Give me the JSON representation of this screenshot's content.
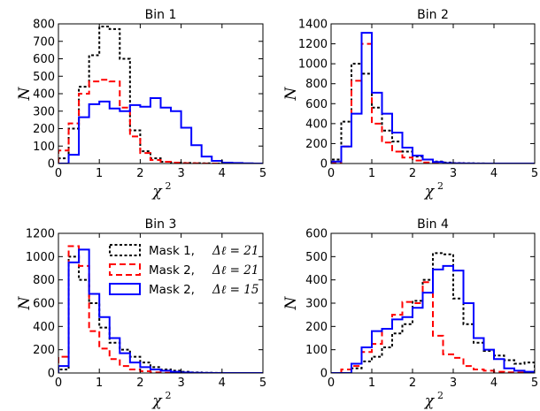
{
  "colors": {
    "mask1": "#000000",
    "mask2_21": "#ff0000",
    "mask2_15": "#0000ff"
  },
  "legend": [
    {
      "series": 0,
      "text": "Mask 1, ",
      "math": "Δℓ = 21"
    },
    {
      "series": 1,
      "text": "Mask 2, ",
      "math": "Δℓ = 21"
    },
    {
      "series": 2,
      "text": "Mask 2, ",
      "math": "Δℓ = 15"
    }
  ],
  "chart_data": [
    {
      "type": "histogram",
      "title": "Bin 1",
      "xlabel": "χ",
      "xlabel_sup": "2",
      "ylabel": "N",
      "xlim": [
        0,
        5
      ],
      "ylim": [
        0,
        800
      ],
      "xticks": [
        0,
        1,
        2,
        3,
        4,
        5
      ],
      "yticks": [
        0,
        100,
        200,
        300,
        400,
        500,
        600,
        700,
        800
      ],
      "bin_edges": [
        0,
        0.25,
        0.5,
        0.75,
        1,
        1.25,
        1.5,
        1.75,
        2,
        2.25,
        2.5,
        2.75,
        3,
        3.25,
        3.5,
        3.75,
        4,
        4.25,
        4.5,
        4.75,
        5
      ],
      "series": [
        {
          "style": "dotted",
          "counts": [
            30,
            200,
            440,
            620,
            785,
            770,
            600,
            190,
            70,
            30,
            10,
            5,
            3,
            2,
            1,
            0,
            0,
            0,
            0,
            0
          ]
        },
        {
          "style": "dashed",
          "counts": [
            75,
            230,
            400,
            470,
            480,
            470,
            320,
            155,
            60,
            20,
            10,
            5,
            2,
            1,
            0,
            0,
            0,
            0,
            0,
            0
          ]
        },
        {
          "style": "solid",
          "counts": [
            0,
            50,
            265,
            340,
            355,
            315,
            300,
            335,
            325,
            375,
            320,
            300,
            205,
            105,
            40,
            15,
            5,
            3,
            1,
            0
          ]
        }
      ]
    },
    {
      "type": "histogram",
      "title": "Bin 2",
      "xlabel": "χ",
      "xlabel_sup": "2",
      "ylabel": "N",
      "xlim": [
        0,
        5
      ],
      "ylim": [
        0,
        1400
      ],
      "xticks": [
        0,
        1,
        2,
        3,
        4,
        5
      ],
      "yticks": [
        0,
        200,
        400,
        600,
        800,
        1000,
        1200,
        1400
      ],
      "bin_edges": [
        0,
        0.25,
        0.5,
        0.75,
        1,
        1.25,
        1.5,
        1.75,
        2,
        2.25,
        2.5,
        2.75,
        3,
        3.25,
        3.5,
        3.75,
        4,
        4.25,
        4.5,
        4.75,
        5
      ],
      "series": [
        {
          "style": "dotted",
          "counts": [
            40,
            420,
            1000,
            900,
            560,
            330,
            220,
            120,
            70,
            40,
            20,
            10,
            5,
            2,
            1,
            0,
            0,
            0,
            0,
            0
          ]
        },
        {
          "style": "dashed",
          "counts": [
            10,
            170,
            830,
            1200,
            400,
            210,
            120,
            60,
            30,
            10,
            5,
            2,
            1,
            0,
            0,
            0,
            0,
            0,
            0,
            0
          ]
        },
        {
          "style": "solid",
          "counts": [
            20,
            170,
            500,
            1310,
            710,
            500,
            310,
            160,
            80,
            40,
            15,
            5,
            2,
            1,
            0,
            0,
            0,
            0,
            0,
            0
          ]
        }
      ]
    },
    {
      "type": "histogram",
      "title": "Bin 3",
      "xlabel": "χ",
      "xlabel_sup": "2",
      "ylabel": "N",
      "xlim": [
        0,
        5
      ],
      "ylim": [
        0,
        1200
      ],
      "xticks": [
        0,
        1,
        2,
        3,
        4,
        5
      ],
      "yticks": [
        0,
        200,
        400,
        600,
        800,
        1000,
        1200
      ],
      "bin_edges": [
        0,
        0.25,
        0.5,
        0.75,
        1,
        1.25,
        1.5,
        1.75,
        2,
        2.25,
        2.5,
        2.75,
        3,
        3.25,
        3.5,
        3.75,
        4,
        4.25,
        4.5,
        4.75,
        5
      ],
      "series": [
        {
          "style": "dotted",
          "counts": [
            30,
            1000,
            800,
            600,
            390,
            260,
            200,
            140,
            90,
            50,
            30,
            20,
            10,
            5,
            2,
            1,
            0,
            0,
            0,
            0
          ]
        },
        {
          "style": "dashed",
          "counts": [
            140,
            1090,
            920,
            360,
            210,
            120,
            60,
            30,
            15,
            5,
            2,
            1,
            0,
            0,
            0,
            0,
            0,
            0,
            0,
            0
          ]
        },
        {
          "style": "solid",
          "counts": [
            60,
            950,
            1060,
            680,
            480,
            300,
            170,
            90,
            50,
            30,
            20,
            10,
            5,
            2,
            1,
            0,
            0,
            0,
            0,
            0
          ]
        }
      ]
    },
    {
      "type": "histogram",
      "title": "Bin 4",
      "xlabel": "χ",
      "xlabel_sup": "2",
      "ylabel": "N",
      "xlim": [
        0,
        5
      ],
      "ylim": [
        0,
        600
      ],
      "xticks": [
        0,
        1,
        2,
        3,
        4,
        5
      ],
      "yticks": [
        0,
        100,
        200,
        300,
        400,
        500,
        600
      ],
      "bin_edges": [
        0,
        0.25,
        0.5,
        0.75,
        1,
        1.25,
        1.5,
        1.75,
        2,
        2.25,
        2.5,
        2.75,
        3,
        3.25,
        3.5,
        3.75,
        4,
        4.25,
        4.5,
        4.75,
        5
      ],
      "series": [
        {
          "style": "dotted",
          "counts": [
            0,
            0,
            20,
            50,
            70,
            110,
            170,
            210,
            310,
            400,
            515,
            510,
            320,
            210,
            130,
            95,
            75,
            55,
            40,
            45
          ]
        },
        {
          "style": "dashed",
          "counts": [
            0,
            15,
            30,
            90,
            125,
            190,
            250,
            305,
            300,
            390,
            160,
            80,
            65,
            30,
            15,
            10,
            5,
            3,
            2,
            1
          ]
        },
        {
          "style": "solid",
          "counts": [
            0,
            0,
            40,
            110,
            180,
            190,
            230,
            240,
            280,
            345,
            445,
            460,
            440,
            300,
            150,
            100,
            60,
            20,
            10,
            5
          ]
        }
      ]
    }
  ]
}
